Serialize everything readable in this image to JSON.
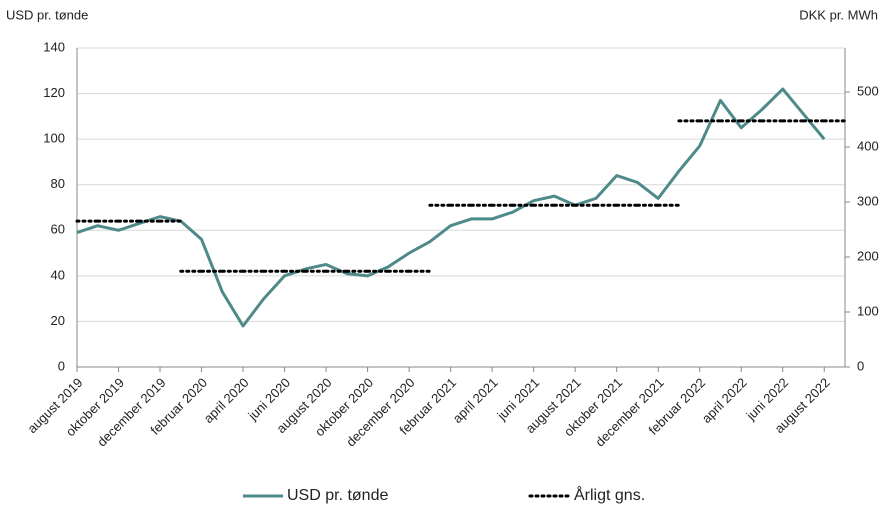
{
  "chart_data": {
    "type": "line",
    "y_label": "USD pr. tønde",
    "y2_label": "DKK pr. MWh",
    "x": [
      "2019-08",
      "2019-09",
      "2019-10",
      "2019-11",
      "2019-12",
      "2020-01",
      "2020-02",
      "2020-03",
      "2020-04",
      "2020-05",
      "2020-06",
      "2020-07",
      "2020-08",
      "2020-09",
      "2020-10",
      "2020-11",
      "2020-12",
      "2021-01",
      "2021-02",
      "2021-03",
      "2021-04",
      "2021-05",
      "2021-06",
      "2021-07",
      "2021-08",
      "2021-09",
      "2021-10",
      "2021-11",
      "2021-12",
      "2022-01",
      "2022-02",
      "2022-03",
      "2022-04",
      "2022-05",
      "2022-06",
      "2022-07",
      "2022-08"
    ],
    "series": [
      {
        "name": "USD pr. tønde",
        "color": "#4f8a8b",
        "style": "solid",
        "values": [
          59,
          62,
          60,
          63,
          66,
          64,
          56,
          33,
          18,
          30,
          40,
          43,
          45,
          41,
          40,
          44,
          50,
          55,
          62,
          65,
          65,
          68,
          73,
          75,
          71,
          74,
          84,
          81,
          74,
          86,
          97,
          117,
          105,
          113,
          122,
          111,
          100
        ]
      },
      {
        "name": "Årligt gns.",
        "color": "#000000",
        "style": "dotted",
        "values": [
          64,
          64,
          64,
          64,
          64,
          42,
          42,
          42,
          42,
          42,
          42,
          42,
          42,
          42,
          42,
          42,
          42,
          71,
          71,
          71,
          71,
          71,
          71,
          71,
          71,
          71,
          71,
          71,
          71,
          108,
          108,
          108,
          108,
          108,
          108,
          108,
          108
        ]
      }
    ],
    "xlim": [
      "2019-08",
      "2022-09"
    ],
    "xticks": [
      {
        "value": "2019-08",
        "label": "august 2019"
      },
      {
        "value": "2019-10",
        "label": "oktober 2019"
      },
      {
        "value": "2019-12",
        "label": "december 2019"
      },
      {
        "value": "2020-02",
        "label": "februar 2020"
      },
      {
        "value": "2020-04",
        "label": "april 2020"
      },
      {
        "value": "2020-06",
        "label": "juni 2020"
      },
      {
        "value": "2020-08",
        "label": "august 2020"
      },
      {
        "value": "2020-10",
        "label": "oktober 2020"
      },
      {
        "value": "2020-12",
        "label": "december 2020"
      },
      {
        "value": "2021-02",
        "label": "februar 2021"
      },
      {
        "value": "2021-04",
        "label": "april 2021"
      },
      {
        "value": "2021-06",
        "label": "juni 2021"
      },
      {
        "value": "2021-08",
        "label": "august 2021"
      },
      {
        "value": "2021-10",
        "label": "oktober 2021"
      },
      {
        "value": "2021-12",
        "label": "december 2021"
      },
      {
        "value": "2022-02",
        "label": "februar 2022"
      },
      {
        "value": "2022-04",
        "label": "april 2022"
      },
      {
        "value": "2022-06",
        "label": "juni 2022"
      },
      {
        "value": "2022-08",
        "label": "august 2022"
      }
    ],
    "ylim": [
      0,
      140
    ],
    "yticks": [
      0,
      20,
      40,
      60,
      80,
      100,
      120,
      140
    ],
    "y2lim": [
      0,
      580
    ],
    "y2ticks": [
      0,
      100,
      200,
      300,
      400,
      500
    ],
    "grid": true
  }
}
